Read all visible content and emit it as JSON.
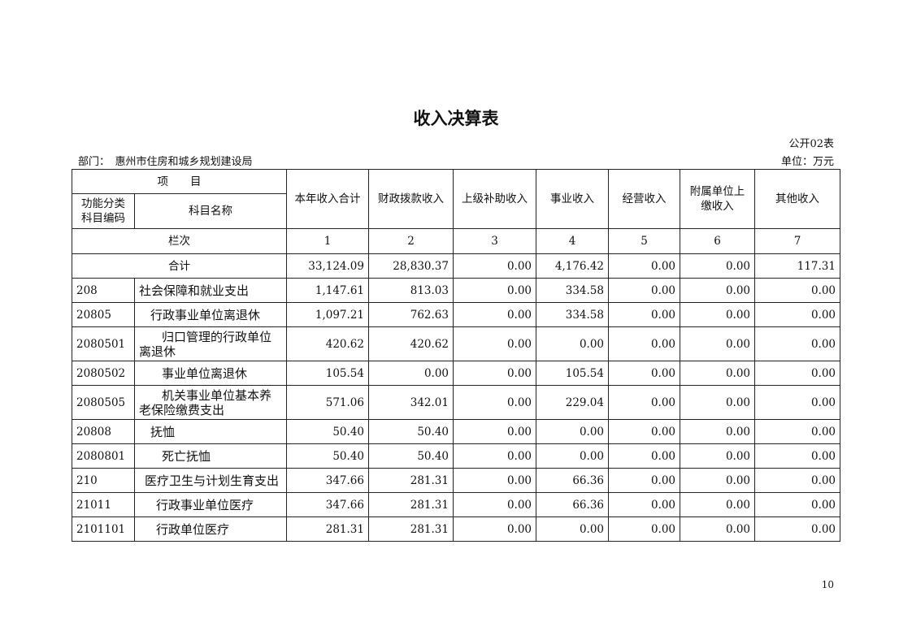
{
  "title": "收入决算表",
  "form_no": "公开02表",
  "department": "部门：　惠州市住房和城乡规划建设局",
  "unit": "单位：万元",
  "page_number": "10",
  "header": {
    "item": "项　　目",
    "code": "功能分类科目编码",
    "name": "科目名称",
    "columns": [
      "本年收入合计",
      "财政拨款收入",
      "上级补助收入",
      "事业收入",
      "经营收入",
      "附属单位上缴收入",
      "其他收入"
    ],
    "index_label": "栏次",
    "indices": [
      "1",
      "2",
      "3",
      "4",
      "5",
      "6",
      "7"
    ]
  },
  "total": {
    "label": "合计",
    "values": [
      "33,124.09",
      "28,830.37",
      "0.00",
      "4,176.42",
      "0.00",
      "0.00",
      "117.31"
    ]
  },
  "rows": [
    {
      "code": "208",
      "name": "社会保障和就业支出",
      "indent": 0,
      "values": [
        "1,147.61",
        "813.03",
        "0.00",
        "334.58",
        "0.00",
        "0.00",
        "0.00"
      ]
    },
    {
      "code": "20805",
      "name": "行政事业单位离退休",
      "indent": 2,
      "values": [
        "1,097.21",
        "762.63",
        "0.00",
        "334.58",
        "0.00",
        "0.00",
        "0.00"
      ]
    },
    {
      "code": "2080501",
      "name": "归口管理的行政单位离退休",
      "indent": 4,
      "values": [
        "420.62",
        "420.62",
        "0.00",
        "0.00",
        "0.00",
        "0.00",
        "0.00"
      ]
    },
    {
      "code": "2080502",
      "name": "事业单位离退休",
      "indent": 4,
      "values": [
        "105.54",
        "0.00",
        "0.00",
        "105.54",
        "0.00",
        "0.00",
        "0.00"
      ]
    },
    {
      "code": "2080505",
      "name": "机关事业单位基本养老保险缴费支出",
      "indent": 4,
      "values": [
        "571.06",
        "342.01",
        "0.00",
        "229.04",
        "0.00",
        "0.00",
        "0.00"
      ]
    },
    {
      "code": "20808",
      "name": "抚恤",
      "indent": 2,
      "values": [
        "50.40",
        "50.40",
        "0.00",
        "0.00",
        "0.00",
        "0.00",
        "0.00"
      ]
    },
    {
      "code": "2080801",
      "name": "死亡抚恤",
      "indent": 4,
      "values": [
        "50.40",
        "50.40",
        "0.00",
        "0.00",
        "0.00",
        "0.00",
        "0.00"
      ]
    },
    {
      "code": "210",
      "name": "医疗卫生与计划生育支出",
      "indent": 1,
      "values": [
        "347.66",
        "281.31",
        "0.00",
        "66.36",
        "0.00",
        "0.00",
        "0.00"
      ]
    },
    {
      "code": "21011",
      "name": "行政事业单位医疗",
      "indent": 3,
      "values": [
        "347.66",
        "281.31",
        "0.00",
        "66.36",
        "0.00",
        "0.00",
        "0.00"
      ]
    },
    {
      "code": "2101101",
      "name": "行政单位医疗",
      "indent": 3,
      "values": [
        "281.31",
        "281.31",
        "0.00",
        "0.00",
        "0.00",
        "0.00",
        "0.00"
      ]
    }
  ]
}
